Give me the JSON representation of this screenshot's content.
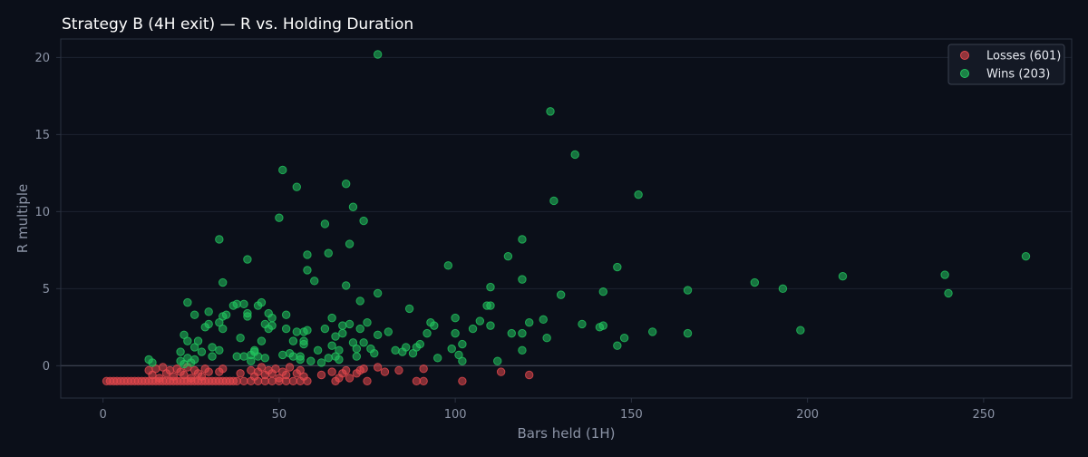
{
  "chart_data": {
    "type": "scatter",
    "title": "Strategy B (4H exit) — R vs. Holding Duration",
    "xlabel": "Bars held (1H)",
    "ylabel": "R multiple",
    "xlim": [
      -12,
      275
    ],
    "ylim": [
      -2.1,
      21.2
    ],
    "xticks": [
      0,
      50,
      100,
      150,
      200,
      250
    ],
    "yticks": [
      0,
      5,
      10,
      15,
      20
    ],
    "grid": "horizontal",
    "zero_line": true,
    "legend_position": "top-right",
    "colors": {
      "background": "#0b0f19",
      "plot_border": "#2a3140",
      "grid": "#1d2330",
      "zero_line": "#4a5160",
      "losses": "#e5484d",
      "wins": "#22c55e"
    },
    "series": [
      {
        "name": "Losses (601)",
        "color": "#e5484d",
        "points": [
          [
            1,
            -1
          ],
          [
            2,
            -1
          ],
          [
            3,
            -1
          ],
          [
            4,
            -1
          ],
          [
            5,
            -1
          ],
          [
            6,
            -1
          ],
          [
            7,
            -1
          ],
          [
            8,
            -1
          ],
          [
            9,
            -1
          ],
          [
            10,
            -1
          ],
          [
            11,
            -1
          ],
          [
            12,
            -1
          ],
          [
            13,
            -1
          ],
          [
            14,
            -1
          ],
          [
            15,
            -1
          ],
          [
            16,
            -1
          ],
          [
            17,
            -1
          ],
          [
            18,
            -1
          ],
          [
            19,
            -1
          ],
          [
            20,
            -1
          ],
          [
            21,
            -1
          ],
          [
            22,
            -1
          ],
          [
            23,
            -1
          ],
          [
            24,
            -1
          ],
          [
            25,
            -1
          ],
          [
            26,
            -1
          ],
          [
            27,
            -1
          ],
          [
            28,
            -1
          ],
          [
            29,
            -1
          ],
          [
            30,
            -1
          ],
          [
            31,
            -1
          ],
          [
            32,
            -1
          ],
          [
            33,
            -1
          ],
          [
            34,
            -1
          ],
          [
            35,
            -1
          ],
          [
            36,
            -1
          ],
          [
            37,
            -1
          ],
          [
            38,
            -1
          ],
          [
            40,
            -1
          ],
          [
            42,
            -1
          ],
          [
            44,
            -1
          ],
          [
            46,
            -1
          ],
          [
            48,
            -1
          ],
          [
            50,
            -1
          ],
          [
            52,
            -1
          ],
          [
            54,
            -1
          ],
          [
            56,
            -1
          ],
          [
            58,
            -1
          ],
          [
            66,
            -1
          ],
          [
            75,
            -1
          ],
          [
            89,
            -1
          ],
          [
            91,
            -1
          ],
          [
            102,
            -1
          ],
          [
            13,
            -0.3
          ],
          [
            14,
            -0.6
          ],
          [
            15,
            -0.2
          ],
          [
            16,
            -0.8
          ],
          [
            17,
            -0.1
          ],
          [
            18,
            -0.5
          ],
          [
            19,
            -0.3
          ],
          [
            20,
            -0.7
          ],
          [
            21,
            -0.2
          ],
          [
            22,
            -0.4
          ],
          [
            23,
            -0.6
          ],
          [
            24,
            -0.1
          ],
          [
            25,
            -0.8
          ],
          [
            26,
            -0.3
          ],
          [
            27,
            -0.5
          ],
          [
            28,
            -0.7
          ],
          [
            29,
            -0.2
          ],
          [
            30,
            -0.4
          ],
          [
            33,
            -0.4
          ],
          [
            34,
            -0.2
          ],
          [
            39,
            -0.5
          ],
          [
            42,
            -0.3
          ],
          [
            43,
            -0.7
          ],
          [
            44,
            -0.4
          ],
          [
            45,
            -0.1
          ],
          [
            46,
            -0.6
          ],
          [
            47,
            -0.3
          ],
          [
            48,
            -0.5
          ],
          [
            49,
            -0.2
          ],
          [
            50,
            -0.8
          ],
          [
            51,
            -0.4
          ],
          [
            52,
            -0.6
          ],
          [
            53,
            -0.1
          ],
          [
            55,
            -0.5
          ],
          [
            56,
            -0.3
          ],
          [
            57,
            -0.7
          ],
          [
            62,
            -0.6
          ],
          [
            65,
            -0.4
          ],
          [
            67,
            -0.8
          ],
          [
            68,
            -0.5
          ],
          [
            69,
            -0.3
          ],
          [
            70,
            -0.8
          ],
          [
            72,
            -0.5
          ],
          [
            73,
            -0.3
          ],
          [
            74,
            -0.2
          ],
          [
            78,
            -0.1
          ],
          [
            80,
            -0.4
          ],
          [
            84,
            -0.3
          ],
          [
            91,
            -0.2
          ],
          [
            113,
            -0.4
          ],
          [
            121,
            -0.6
          ]
        ]
      },
      {
        "name": "Wins (203)",
        "color": "#22c55e",
        "points": [
          [
            13,
            0.4
          ],
          [
            14,
            0.2
          ],
          [
            22,
            0.3
          ],
          [
            23,
            0.1
          ],
          [
            24,
            0.5
          ],
          [
            25,
            0.2
          ],
          [
            26,
            0.4
          ],
          [
            22,
            0.9
          ],
          [
            23,
            2.0
          ],
          [
            24,
            1.6
          ],
          [
            24,
            4.1
          ],
          [
            26,
            1.2
          ],
          [
            26,
            3.3
          ],
          [
            27,
            1.6
          ],
          [
            28,
            0.9
          ],
          [
            29,
            2.5
          ],
          [
            30,
            2.7
          ],
          [
            30,
            3.5
          ],
          [
            31,
            1.2
          ],
          [
            31,
            0.6
          ],
          [
            33,
            1.0
          ],
          [
            33,
            2.8
          ],
          [
            33,
            8.2
          ],
          [
            34,
            5.4
          ],
          [
            34,
            2.4
          ],
          [
            34,
            3.2
          ],
          [
            35,
            3.3
          ],
          [
            37,
            3.9
          ],
          [
            38,
            0.6
          ],
          [
            38,
            4.0
          ],
          [
            39,
            1.8
          ],
          [
            40,
            4.0
          ],
          [
            40,
            0.6
          ],
          [
            41,
            3.4
          ],
          [
            41,
            3.2
          ],
          [
            41,
            6.9
          ],
          [
            42,
            0.7
          ],
          [
            42,
            0.3
          ],
          [
            43,
            0.9
          ],
          [
            43,
            1.0
          ],
          [
            44,
            0.6
          ],
          [
            44,
            3.9
          ],
          [
            45,
            4.1
          ],
          [
            45,
            1.6
          ],
          [
            46,
            2.7
          ],
          [
            46,
            0.5
          ],
          [
            47,
            3.4
          ],
          [
            47,
            2.4
          ],
          [
            48,
            3.1
          ],
          [
            48,
            2.6
          ],
          [
            50,
            9.6
          ],
          [
            51,
            0.7
          ],
          [
            51,
            12.7
          ],
          [
            52,
            3.3
          ],
          [
            52,
            2.4
          ],
          [
            53,
            0.8
          ],
          [
            54,
            0.6
          ],
          [
            54,
            1.6
          ],
          [
            55,
            2.2
          ],
          [
            55,
            11.6
          ],
          [
            56,
            0.4
          ],
          [
            56,
            0.6
          ],
          [
            57,
            2.2
          ],
          [
            57,
            1.6
          ],
          [
            57,
            1.4
          ],
          [
            58,
            2.3
          ],
          [
            58,
            7.2
          ],
          [
            58,
            6.2
          ],
          [
            59,
            0.3
          ],
          [
            60,
            5.5
          ],
          [
            61,
            1.0
          ],
          [
            62,
            0.2
          ],
          [
            63,
            9.2
          ],
          [
            63,
            2.4
          ],
          [
            64,
            7.3
          ],
          [
            64,
            0.5
          ],
          [
            65,
            1.3
          ],
          [
            65,
            3.1
          ],
          [
            66,
            0.6
          ],
          [
            66,
            1.9
          ],
          [
            67,
            1.0
          ],
          [
            67,
            0.4
          ],
          [
            68,
            2.1
          ],
          [
            68,
            2.6
          ],
          [
            69,
            11.8
          ],
          [
            69,
            5.2
          ],
          [
            70,
            7.9
          ],
          [
            70,
            2.7
          ],
          [
            71,
            10.3
          ],
          [
            71,
            1.5
          ],
          [
            72,
            1.1
          ],
          [
            72,
            0.6
          ],
          [
            73,
            4.2
          ],
          [
            73,
            2.4
          ],
          [
            74,
            9.4
          ],
          [
            74,
            1.5
          ],
          [
            75,
            2.8
          ],
          [
            76,
            1.1
          ],
          [
            77,
            0.8
          ],
          [
            78,
            20.2
          ],
          [
            78,
            2.0
          ],
          [
            78,
            4.7
          ],
          [
            81,
            2.2
          ],
          [
            83,
            1.0
          ],
          [
            85,
            0.9
          ],
          [
            86,
            1.2
          ],
          [
            87,
            3.7
          ],
          [
            88,
            0.8
          ],
          [
            89,
            1.2
          ],
          [
            90,
            1.4
          ],
          [
            92,
            2.1
          ],
          [
            93,
            2.8
          ],
          [
            94,
            2.6
          ],
          [
            95,
            0.5
          ],
          [
            98,
            6.5
          ],
          [
            99,
            1.1
          ],
          [
            100,
            3.1
          ],
          [
            100,
            2.1
          ],
          [
            101,
            0.7
          ],
          [
            102,
            1.4
          ],
          [
            102,
            0.3
          ],
          [
            105,
            2.4
          ],
          [
            107,
            2.9
          ],
          [
            109,
            3.9
          ],
          [
            110,
            3.9
          ],
          [
            110,
            5.1
          ],
          [
            110,
            2.6
          ],
          [
            112,
            0.3
          ],
          [
            115,
            7.1
          ],
          [
            116,
            2.1
          ],
          [
            119,
            8.2
          ],
          [
            119,
            5.6
          ],
          [
            119,
            2.1
          ],
          [
            119,
            1.0
          ],
          [
            121,
            2.8
          ],
          [
            125,
            3.0
          ],
          [
            126,
            1.8
          ],
          [
            127,
            16.5
          ],
          [
            128,
            10.7
          ],
          [
            130,
            4.6
          ],
          [
            134,
            13.7
          ],
          [
            136,
            2.7
          ],
          [
            141,
            2.5
          ],
          [
            142,
            2.6
          ],
          [
            142,
            4.8
          ],
          [
            146,
            6.4
          ],
          [
            146,
            1.3
          ],
          [
            148,
            1.8
          ],
          [
            152,
            11.1
          ],
          [
            156,
            2.2
          ],
          [
            166,
            4.9
          ],
          [
            166,
            2.1
          ],
          [
            185,
            5.4
          ],
          [
            193,
            5.0
          ],
          [
            198,
            2.3
          ],
          [
            210,
            5.8
          ],
          [
            239,
            5.9
          ],
          [
            240,
            4.7
          ],
          [
            262,
            7.1
          ]
        ]
      }
    ]
  }
}
